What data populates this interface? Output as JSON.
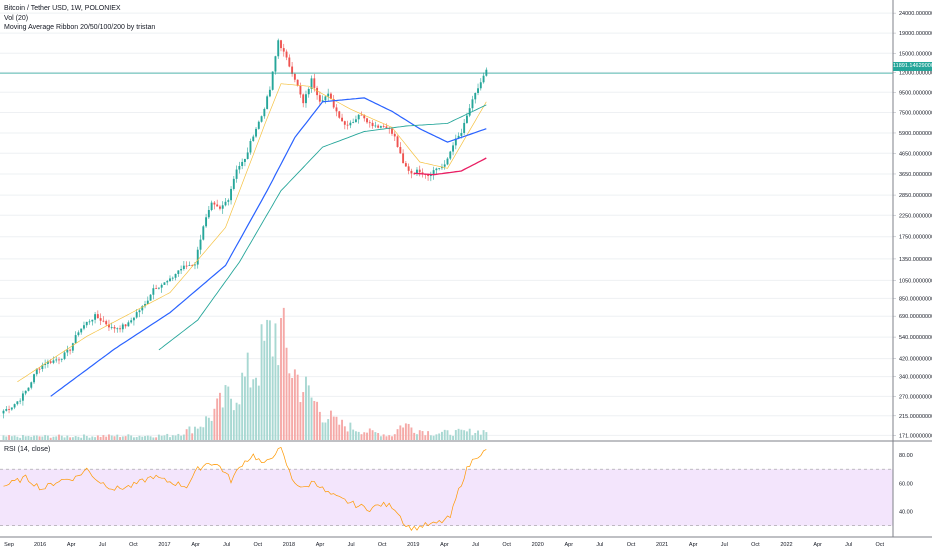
{
  "legend": {
    "title": "Bitcoin / Tether USD, 1W, POLONIEX",
    "vol": "Vol (20)",
    "ma": "Moving Average Ribbon 20/50/100/200 by tristan"
  },
  "rsi_legend": "RSI (14, close)",
  "price_tag": "11891.14629000",
  "colors": {
    "up": "#26a69a",
    "down": "#ef5350",
    "ma20": "#f5c242",
    "ma50": "#2962ff",
    "ma100": "#26a69a",
    "ma200": "#e91e63",
    "rsi": "#ff9800",
    "rsi_band": "#f3e5fc",
    "grid": "#eef0f3",
    "hline": "#26a69a"
  },
  "chart_data": [
    {
      "type": "candlestick",
      "title": "Bitcoin / Tether USD, 1W, POLONIEX",
      "scale": "log",
      "x_ticks": [
        "Sep",
        "2016",
        "Apr",
        "Jul",
        "Oct",
        "2017",
        "Apr",
        "Jul",
        "Oct",
        "2018",
        "Apr",
        "Jul",
        "Oct",
        "2019",
        "Apr",
        "Jul",
        "Oct",
        "2020",
        "Apr",
        "Jul",
        "Oct",
        "2021",
        "Apr",
        "Jul",
        "Oct",
        "2022",
        "Apr",
        "Jul",
        "Oct"
      ],
      "y_ticks": [
        24000,
        19000,
        15000,
        12000,
        9500,
        7500,
        5900,
        4650,
        3650,
        2850,
        2250,
        1750,
        1350,
        1050,
        850,
        690,
        540,
        420,
        340,
        270,
        215,
        171
      ],
      "y_labels": [
        "24000.00000000",
        "19000.00000000",
        "15000.00000000",
        "12000.00000000",
        "9500.00000000",
        "7500.00000000",
        "5900.00000000",
        "4650.00000000",
        "3650.00000000",
        "2850.00000000",
        "2250.00000000",
        "1750.00000000",
        "1350.00000000",
        "1050.00000000",
        "850.00000000",
        "690.00000000",
        "540.00000000",
        "420.00000000",
        "340.00000000",
        "270.00000000",
        "215.00000000",
        "171.00000000"
      ],
      "ylim": [
        160,
        28000
      ],
      "last_price": 11891.14629,
      "close_anchors": [
        [
          0,
          228
        ],
        [
          3,
          240
        ],
        [
          6,
          262
        ],
        [
          9,
          300
        ],
        [
          12,
          370
        ],
        [
          15,
          400
        ],
        [
          18,
          410
        ],
        [
          21,
          428
        ],
        [
          24,
          470
        ],
        [
          27,
          580
        ],
        [
          30,
          640
        ],
        [
          33,
          690
        ],
        [
          36,
          650
        ],
        [
          39,
          600
        ],
        [
          42,
          605
        ],
        [
          45,
          630
        ],
        [
          48,
          720
        ],
        [
          51,
          790
        ],
        [
          54,
          960
        ],
        [
          57,
          1000
        ],
        [
          60,
          1050
        ],
        [
          63,
          1180
        ],
        [
          66,
          1250
        ],
        [
          69,
          1280
        ],
        [
          72,
          2000
        ],
        [
          75,
          2550
        ],
        [
          78,
          2400
        ],
        [
          81,
          2750
        ],
        [
          84,
          3900
        ],
        [
          87,
          4300
        ],
        [
          90,
          5800
        ],
        [
          93,
          7200
        ],
        [
          96,
          9800
        ],
        [
          99,
          17500
        ],
        [
          102,
          14000
        ],
        [
          105,
          11200
        ],
        [
          108,
          8300
        ],
        [
          111,
          11000
        ],
        [
          114,
          8700
        ],
        [
          117,
          9200
        ],
        [
          120,
          7600
        ],
        [
          123,
          6500
        ],
        [
          126,
          6800
        ],
        [
          129,
          7400
        ],
        [
          132,
          6600
        ],
        [
          135,
          6400
        ],
        [
          138,
          6400
        ],
        [
          141,
          5600
        ],
        [
          144,
          4100
        ],
        [
          147,
          3700
        ],
        [
          150,
          3800
        ],
        [
          153,
          3600
        ],
        [
          156,
          3900
        ],
        [
          159,
          4000
        ],
        [
          162,
          5200
        ],
        [
          165,
          5900
        ],
        [
          168,
          7900
        ],
        [
          171,
          10000
        ],
        [
          174,
          12200
        ]
      ],
      "ma_series": [
        {
          "name": "MA 20",
          "from": 5,
          "anchors": [
            [
              5,
              320
            ],
            [
              30,
              545
            ],
            [
              60,
              910
            ],
            [
              80,
              1950
            ],
            [
              95,
              7000
            ],
            [
              100,
              10500
            ],
            [
              110,
              10200
            ],
            [
              125,
              7800
            ],
            [
              140,
              6300
            ],
            [
              150,
              4200
            ],
            [
              160,
              3900
            ],
            [
              174,
              8500
            ]
          ]
        },
        {
          "name": "MA 50",
          "from": 17,
          "anchors": [
            [
              17,
              270
            ],
            [
              40,
              470
            ],
            [
              60,
              720
            ],
            [
              80,
              1250
            ],
            [
              95,
              3000
            ],
            [
              105,
              5600
            ],
            [
              115,
              8500
            ],
            [
              130,
              8900
            ],
            [
              140,
              7600
            ],
            [
              150,
              6200
            ],
            [
              160,
              5300
            ],
            [
              174,
              6200
            ]
          ]
        },
        {
          "name": "MA 100",
          "from": 56,
          "anchors": [
            [
              56,
              465
            ],
            [
              70,
              660
            ],
            [
              85,
              1300
            ],
            [
              100,
              3000
            ],
            [
              115,
              5000
            ],
            [
              130,
              6000
            ],
            [
              145,
              6400
            ],
            [
              160,
              6600
            ],
            [
              174,
              8200
            ]
          ]
        },
        {
          "name": "MA 200",
          "from": 148,
          "anchors": [
            [
              148,
              3680
            ],
            [
              155,
              3620
            ],
            [
              165,
              3780
            ],
            [
              174,
              4400
            ]
          ]
        }
      ]
    },
    {
      "type": "bar",
      "title": "Vol (20)",
      "unit": "relative",
      "anchors": [
        [
          0,
          0.03
        ],
        [
          60,
          0.04
        ],
        [
          66,
          0.08
        ],
        [
          72,
          0.15
        ],
        [
          78,
          0.3
        ],
        [
          84,
          0.45
        ],
        [
          88,
          0.55
        ],
        [
          92,
          0.7
        ],
        [
          96,
          0.9
        ],
        [
          99,
          1.0
        ],
        [
          102,
          0.75
        ],
        [
          106,
          0.55
        ],
        [
          110,
          0.4
        ],
        [
          115,
          0.25
        ],
        [
          120,
          0.15
        ],
        [
          130,
          0.08
        ],
        [
          140,
          0.04
        ],
        [
          144,
          0.15
        ],
        [
          148,
          0.1
        ],
        [
          155,
          0.06
        ],
        [
          165,
          0.07
        ],
        [
          174,
          0.08
        ]
      ]
    },
    {
      "type": "line",
      "title": "RSI (14, close)",
      "y_ticks": [
        40,
        60,
        80
      ],
      "y_labels": [
        "40.00",
        "60.00",
        "80.00"
      ],
      "band": [
        30,
        70
      ],
      "ylim": [
        22,
        90
      ],
      "anchors": [
        [
          0,
          58
        ],
        [
          8,
          64
        ],
        [
          14,
          56
        ],
        [
          20,
          62
        ],
        [
          26,
          64
        ],
        [
          30,
          70
        ],
        [
          34,
          62
        ],
        [
          40,
          56
        ],
        [
          46,
          58
        ],
        [
          54,
          65
        ],
        [
          58,
          62
        ],
        [
          62,
          60
        ],
        [
          66,
          58
        ],
        [
          70,
          70
        ],
        [
          74,
          75
        ],
        [
          78,
          72
        ],
        [
          82,
          62
        ],
        [
          86,
          74
        ],
        [
          90,
          80
        ],
        [
          94,
          73
        ],
        [
          98,
          82
        ],
        [
          100,
          84
        ],
        [
          104,
          63
        ],
        [
          108,
          56
        ],
        [
          112,
          62
        ],
        [
          116,
          54
        ],
        [
          120,
          50
        ],
        [
          124,
          47
        ],
        [
          128,
          44
        ],
        [
          132,
          42
        ],
        [
          136,
          45
        ],
        [
          140,
          44
        ],
        [
          142,
          40
        ],
        [
          145,
          30
        ],
        [
          148,
          28
        ],
        [
          151,
          30
        ],
        [
          155,
          31
        ],
        [
          158,
          33
        ],
        [
          161,
          36
        ],
        [
          164,
          55
        ],
        [
          167,
          70
        ],
        [
          170,
          79
        ],
        [
          174,
          83
        ]
      ]
    }
  ]
}
